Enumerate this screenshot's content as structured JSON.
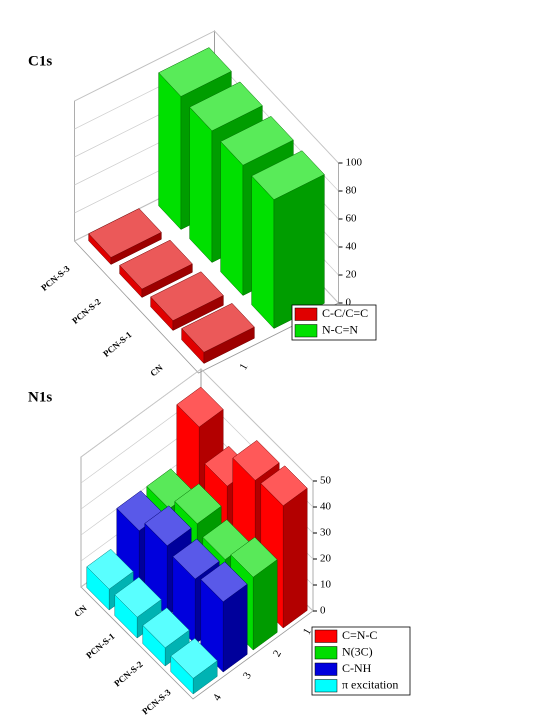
{
  "chart_data": [
    {
      "type": "bar3d",
      "title": "C1s",
      "categories": [
        "PCN-S-3",
        "PCN-S-2",
        "PCN-S-1",
        "CN"
      ],
      "series": [
        {
          "name": "C-C/C=C",
          "color": "#e00000",
          "values": [
            5,
            6,
            7,
            8
          ]
        },
        {
          "name": "N-C=N",
          "color": "#00e000",
          "values": [
            95,
            94,
            93,
            92
          ]
        }
      ],
      "depth_ticks": [
        "1",
        "2"
      ],
      "zlim": [
        0,
        100
      ],
      "zticks": [
        0,
        20,
        40,
        60,
        80,
        100
      ],
      "grid": true
    },
    {
      "type": "bar3d",
      "title": "N1s",
      "categories": [
        "CN",
        "PCN-S-1",
        "PCN-S-2",
        "PCN-S-3"
      ],
      "series": [
        {
          "name": "C=N-C",
          "color": "#ff0000",
          "values": [
            45,
            33,
            46,
            47
          ]
        },
        {
          "name": "N(3C)",
          "color": "#00dd00",
          "values": [
            22,
            27,
            24,
            28
          ]
        },
        {
          "name": "C-NH",
          "color": "#0000dd",
          "values": [
            22,
            27,
            25,
            27
          ]
        },
        {
          "name": "π excitation",
          "color": "#00ffff",
          "values": [
            8,
            8,
            7,
            6
          ]
        }
      ],
      "depth_ticks": [
        "1",
        "2",
        "3",
        "4"
      ],
      "zlim": [
        0,
        50
      ],
      "zticks": [
        0,
        10,
        20,
        30,
        40,
        50
      ],
      "grid": true
    }
  ]
}
